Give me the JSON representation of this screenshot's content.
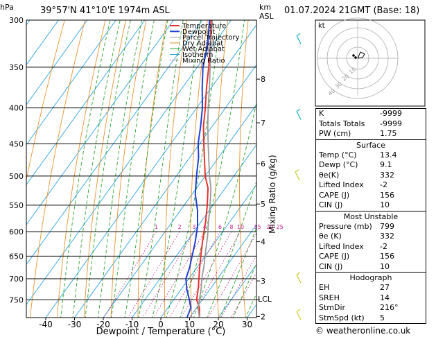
{
  "header": {
    "location": "39°57'N  41°10'E  1974m  ASL",
    "datetime": "01.07.2024  21GMT  (Base: 18)",
    "hpa_label": "hPa",
    "km_label": "km",
    "asl_label": "ASL"
  },
  "chart_data": {
    "type": "line",
    "xlabel": "Dewpoint / Temperature (°C)",
    "ylabel": "Mixing Ratio (g/kg)",
    "x_ticks": [
      -40,
      -30,
      -20,
      -10,
      0,
      10,
      20,
      30
    ],
    "xlim": [
      -45,
      35
    ],
    "pressure_levels": [
      300,
      350,
      400,
      450,
      500,
      550,
      600,
      650,
      700,
      750
    ],
    "ylim": [
      300,
      795
    ],
    "y_scale": "log",
    "km_ticks": [
      {
        "label": "8",
        "p": 364
      },
      {
        "label": "7",
        "p": 420
      },
      {
        "label": "6",
        "p": 480
      },
      {
        "label": "5",
        "p": 548
      },
      {
        "label": "4",
        "p": 620
      },
      {
        "label": "3",
        "p": 705
      },
      {
        "label": "2",
        "p": 792
      }
    ],
    "lcl": {
      "label": "LCL",
      "p": 750
    },
    "mixing_ratio_labels": [
      "1",
      "2",
      "3",
      "4",
      "6",
      "8",
      "10",
      "15",
      "20",
      "25"
    ],
    "mixing_ratio_values": [
      1,
      2,
      3,
      4,
      6,
      8,
      10,
      15,
      20,
      25
    ],
    "legend": {
      "placement": "top-left",
      "items": [
        {
          "name": "Temperature",
          "color": "#e8302e",
          "style": "solid"
        },
        {
          "name": "Dewpoint",
          "color": "#1f3fd6",
          "style": "solid"
        },
        {
          "name": "Parcel Trajectory",
          "color": "#999999",
          "style": "solid"
        },
        {
          "name": "Dry Adiabat",
          "color": "#e09030",
          "style": "solid"
        },
        {
          "name": "Wet Adiabat",
          "color": "#20a020",
          "style": "solid"
        },
        {
          "name": "Isotherm",
          "color": "#20a0e0",
          "style": "solid"
        },
        {
          "name": "Mixing Ratio",
          "color": "#d0208a",
          "style": "dotted"
        }
      ]
    },
    "series": [
      {
        "name": "Temperature",
        "color": "#e8302e",
        "points": [
          [
            13.4,
            795
          ],
          [
            11,
            770
          ],
          [
            8,
            750
          ],
          [
            5.5,
            720
          ],
          [
            3.5,
            700
          ],
          [
            0.5,
            670
          ],
          [
            -2.5,
            640
          ],
          [
            -5.5,
            610
          ],
          [
            -8.5,
            580
          ],
          [
            -12,
            550
          ],
          [
            -16,
            520
          ],
          [
            -20,
            500
          ],
          [
            -25,
            470
          ],
          [
            -28.5,
            450
          ],
          [
            -33,
            425
          ],
          [
            -37,
            400
          ],
          [
            -41.5,
            375
          ],
          [
            -46,
            350
          ],
          [
            -51,
            325
          ],
          [
            -57,
            300
          ]
        ]
      },
      {
        "name": "Dewpoint",
        "color": "#1f3fd6",
        "points": [
          [
            9.1,
            795
          ],
          [
            8,
            770
          ],
          [
            5.5,
            750
          ],
          [
            2,
            725
          ],
          [
            -1,
            700
          ],
          [
            -2.5,
            675
          ],
          [
            -4.5,
            650
          ],
          [
            -7,
            620
          ],
          [
            -10,
            590
          ],
          [
            -14,
            560
          ],
          [
            -19,
            530
          ],
          [
            -23,
            500
          ],
          [
            -27,
            470
          ],
          [
            -30.5,
            450
          ],
          [
            -34,
            425
          ],
          [
            -38,
            400
          ],
          [
            -43,
            375
          ],
          [
            -48,
            350
          ],
          [
            -52,
            325
          ],
          [
            -57.5,
            300
          ]
        ]
      },
      {
        "name": "Parcel Trajectory",
        "color": "#999999",
        "points": [
          [
            13.4,
            795
          ],
          [
            10.5,
            770
          ],
          [
            9,
            750
          ],
          [
            6.5,
            720
          ],
          [
            4.5,
            700
          ],
          [
            2,
            670
          ],
          [
            -1,
            640
          ],
          [
            -4,
            610
          ],
          [
            -7.5,
            580
          ],
          [
            -11,
            550
          ],
          [
            -15,
            520
          ],
          [
            -18.5,
            500
          ],
          [
            -23.5,
            470
          ],
          [
            -27,
            450
          ],
          [
            -31.5,
            425
          ],
          [
            -36,
            400
          ],
          [
            -40.5,
            375
          ],
          [
            -45.5,
            350
          ],
          [
            -51,
            325
          ],
          [
            -56.5,
            300
          ]
        ]
      }
    ]
  },
  "indices": [
    {
      "label": "K",
      "value": "-9999"
    },
    {
      "label": "Totals Totals",
      "value": "-9999"
    },
    {
      "label": "PW (cm)",
      "value": "1.75"
    }
  ],
  "surface": {
    "title": "Surface",
    "rows": [
      {
        "label": "Temp (°C)",
        "value": "13.4"
      },
      {
        "label": "Dewp (°C)",
        "value": "9.1"
      },
      {
        "label": "θe(K)",
        "value": "332"
      },
      {
        "label": "Lifted Index",
        "value": "-2"
      },
      {
        "label": "CAPE (J)",
        "value": "156"
      },
      {
        "label": "CIN (J)",
        "value": "10"
      }
    ]
  },
  "most_unstable": {
    "title": "Most Unstable",
    "rows": [
      {
        "label": "Pressure (mb)",
        "value": "799"
      },
      {
        "label": "θe (K)",
        "value": "332"
      },
      {
        "label": "Lifted Index",
        "value": "-2"
      },
      {
        "label": "CAPE (J)",
        "value": "156"
      },
      {
        "label": "CIN (J)",
        "value": "10"
      }
    ]
  },
  "hodograph": {
    "title": "Hodograph",
    "panel_label": "kt",
    "ring_labels": [
      "10",
      "20",
      "30",
      "40"
    ],
    "rows": [
      {
        "label": "EH",
        "value": "27"
      },
      {
        "label": "SREH",
        "value": "14"
      },
      {
        "label": "StmDir",
        "value": "216°"
      },
      {
        "label": "StmSpd (kt)",
        "value": "5"
      }
    ]
  },
  "credit": "© weatheronline.co.uk"
}
